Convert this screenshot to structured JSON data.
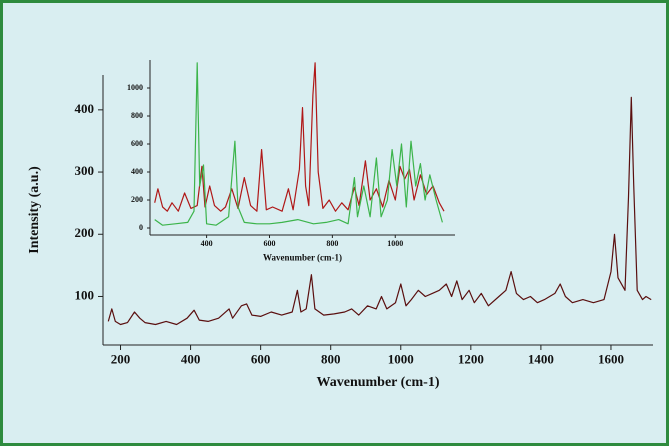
{
  "chart_data": [
    {
      "type": "line",
      "xlabel": "Wavenumber (cm-1)",
      "ylabel": "Intensity (a.u.)",
      "xlim": [
        150,
        1720
      ],
      "ylim": [
        22,
        456
      ],
      "xticks": [
        200,
        400,
        600,
        800,
        1000,
        1200,
        1400,
        1600
      ],
      "yticks": [
        100,
        200,
        300,
        400
      ],
      "series": [
        {
          "color": "#5a0f0f",
          "x": [
            165,
            175,
            185,
            200,
            220,
            240,
            255,
            270,
            300,
            330,
            360,
            390,
            410,
            425,
            450,
            480,
            510,
            520,
            545,
            560,
            575,
            600,
            630,
            660,
            690,
            705,
            715,
            730,
            745,
            755,
            780,
            810,
            840,
            860,
            880,
            905,
            930,
            945,
            960,
            985,
            1000,
            1015,
            1030,
            1050,
            1070,
            1090,
            1110,
            1130,
            1145,
            1160,
            1175,
            1195,
            1210,
            1230,
            1250,
            1280,
            1300,
            1315,
            1330,
            1350,
            1370,
            1390,
            1410,
            1440,
            1455,
            1470,
            1490,
            1520,
            1550,
            1580,
            1600,
            1610,
            1620,
            1640,
            1650,
            1658,
            1665,
            1675,
            1690,
            1700,
            1715
          ],
          "values": [
            60,
            80,
            60,
            55,
            58,
            75,
            65,
            58,
            55,
            60,
            55,
            65,
            78,
            62,
            60,
            65,
            80,
            65,
            85,
            88,
            70,
            68,
            75,
            70,
            75,
            110,
            75,
            80,
            135,
            80,
            70,
            72,
            75,
            80,
            70,
            85,
            80,
            100,
            80,
            90,
            120,
            85,
            95,
            110,
            100,
            105,
            110,
            120,
            100,
            125,
            95,
            110,
            90,
            105,
            85,
            100,
            110,
            140,
            105,
            95,
            100,
            90,
            95,
            105,
            120,
            100,
            90,
            95,
            90,
            95,
            140,
            200,
            130,
            110,
            260,
            420,
            280,
            110,
            95,
            100,
            95
          ]
        }
      ]
    },
    {
      "type": "line",
      "xlabel": "Wavenumber (cm-1)",
      "xlim": [
        220,
        1190
      ],
      "ylim": [
        -50,
        1200
      ],
      "xticks": [
        400,
        600,
        800,
        1000
      ],
      "yticks": [
        0,
        200,
        400,
        600,
        800,
        1000
      ],
      "series": [
        {
          "color": "#b01818",
          "x": [
            235,
            245,
            260,
            275,
            290,
            310,
            330,
            350,
            370,
            385,
            395,
            410,
            425,
            445,
            460,
            480,
            500,
            520,
            540,
            560,
            575,
            590,
            610,
            640,
            660,
            675,
            695,
            705,
            715,
            725,
            738,
            745,
            755,
            770,
            790,
            810,
            830,
            850,
            870,
            885,
            905,
            920,
            940,
            960,
            980,
            1000,
            1015,
            1030,
            1045,
            1060,
            1080,
            1100,
            1120,
            1140,
            1155
          ],
          "values": [
            180,
            280,
            150,
            120,
            180,
            120,
            250,
            140,
            160,
            440,
            150,
            300,
            160,
            120,
            150,
            280,
            140,
            360,
            160,
            120,
            560,
            130,
            150,
            120,
            280,
            130,
            420,
            860,
            300,
            160,
            950,
            1180,
            400,
            140,
            200,
            120,
            180,
            130,
            290,
            160,
            480,
            200,
            280,
            150,
            340,
            200,
            440,
            350,
            420,
            200,
            380,
            240,
            300,
            180,
            120
          ]
        },
        {
          "color": "#3cb44b",
          "x": [
            235,
            260,
            300,
            340,
            360,
            370,
            378,
            390,
            400,
            430,
            470,
            490,
            500,
            520,
            560,
            600,
            640,
            690,
            740,
            780,
            820,
            850,
            870,
            880,
            900,
            920,
            940,
            955,
            975,
            990,
            1005,
            1020,
            1035,
            1050,
            1065,
            1080,
            1095,
            1110,
            1130,
            1150
          ],
          "values": [
            60,
            20,
            30,
            40,
            120,
            1180,
            300,
            450,
            30,
            20,
            80,
            620,
            150,
            40,
            30,
            30,
            40,
            60,
            30,
            40,
            60,
            30,
            360,
            80,
            300,
            80,
            500,
            80,
            200,
            560,
            300,
            600,
            150,
            620,
            300,
            460,
            200,
            380,
            200,
            40
          ]
        }
      ]
    }
  ]
}
